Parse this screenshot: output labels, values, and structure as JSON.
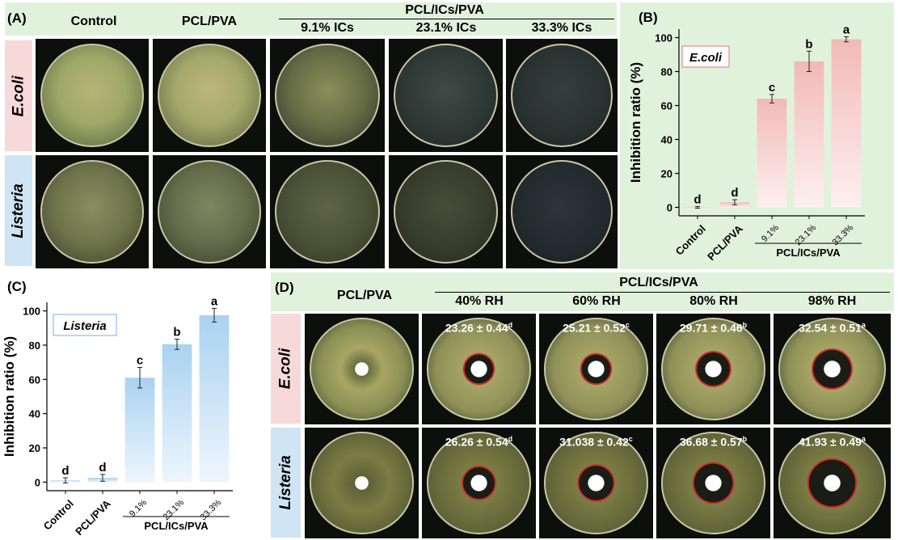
{
  "panelA": {
    "label": "(A)",
    "col_control": "Control",
    "col_pclpva": "PCL/PVA",
    "group_label": "PCL/ICs/PVA",
    "col_9": "9.1% ICs",
    "col_23": "23.1% ICs",
    "col_33": "33.3% ICs",
    "row_ecoli": "E.coli",
    "row_listeria": "Listeria"
  },
  "panelD": {
    "label": "(D)",
    "col_pclpva": "PCL/PVA",
    "group_label": "PCL/ICs/PVA",
    "col_40": "40% RH",
    "col_60": "60% RH",
    "col_80": "80% RH",
    "col_98": "98% RH",
    "row_ecoli": "E.coli",
    "row_listeria": "Listeria",
    "ecoli_zones": [
      {
        "text": "23.26 ± 0.44",
        "sup": "d"
      },
      {
        "text": "25.21 ± 0.52",
        "sup": "c"
      },
      {
        "text": "29.71 ± 0.46",
        "sup": "b"
      },
      {
        "text": "32.54 ± 0.51",
        "sup": "a"
      }
    ],
    "listeria_zones": [
      {
        "text": "26.26 ± 0.54",
        "sup": "d"
      },
      {
        "text": "31.038 ± 0.42",
        "sup": "c"
      },
      {
        "text": "36.68 ± 0.57",
        "sup": "b"
      },
      {
        "text": "41.93 ± 0.49",
        "sup": "a"
      }
    ]
  },
  "chart_data": [
    {
      "panel": "(B)",
      "type": "bar",
      "legend_box": "E.coli",
      "categories": [
        "Control",
        "PCL/PVA",
        "9.1%",
        "23.1%",
        "33.3%"
      ],
      "group_label": "PCL/ICs/PVA",
      "values": [
        0,
        3,
        64,
        86,
        99
      ],
      "errors": [
        0.5,
        1.5,
        2.5,
        6,
        1.5
      ],
      "letters": [
        "d",
        "d",
        "c",
        "b",
        "a"
      ],
      "ylabel": "Inhibition ratio (%)",
      "ylim": [
        -5,
        105
      ],
      "yticks": [
        0,
        20,
        40,
        60,
        80,
        100
      ],
      "colors": {
        "bar_top": "#f2b9b7",
        "bar_bottom": "#fdf0ef",
        "legend_border": "#e8a5a5"
      }
    },
    {
      "panel": "(C)",
      "type": "bar",
      "legend_box": "Listeria",
      "categories": [
        "Control",
        "PCL/PVA",
        "9.1%",
        "23.1%",
        "33.3%"
      ],
      "group_label": "PCL/ICs/PVA",
      "values": [
        1,
        2.5,
        61,
        80.5,
        97.5
      ],
      "errors": [
        1.5,
        2,
        6,
        3,
        4
      ],
      "letters": [
        "d",
        "d",
        "c",
        "b",
        "a"
      ],
      "ylabel": "Inhibition ratio (%)",
      "ylim": [
        -5,
        105
      ],
      "yticks": [
        0,
        20,
        40,
        60,
        80,
        100
      ],
      "colors": {
        "bar_top": "#a9d2f0",
        "bar_bottom": "#eef6fd",
        "legend_border": "#a9cfee"
      }
    }
  ]
}
